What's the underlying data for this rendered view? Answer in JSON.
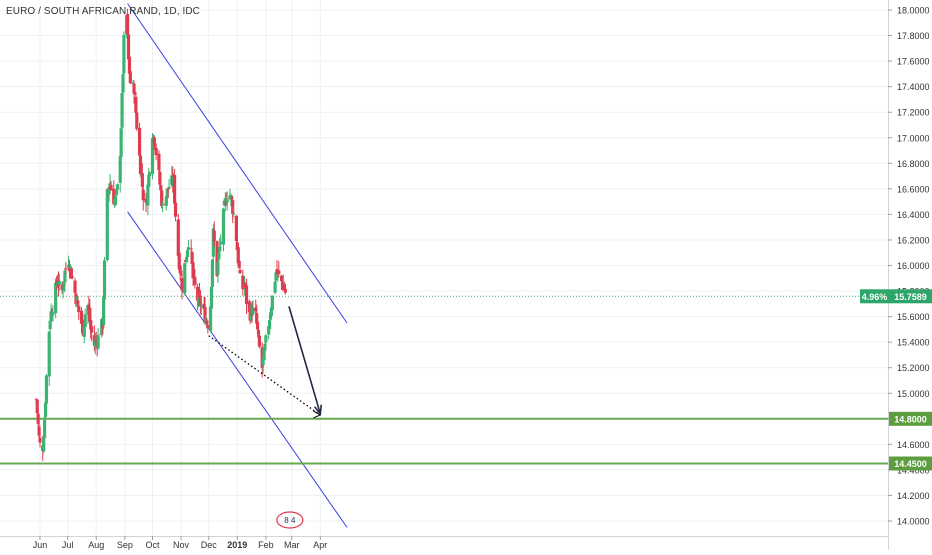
{
  "chart_data": {
    "type": "candlestick",
    "title": "EURO / SOUTH AFRICAN RAND, 1D, IDC",
    "x_ticks": [
      "Jun",
      "Jul",
      "Aug",
      "Sep",
      "Oct",
      "Nov",
      "Dec",
      "2019",
      "Feb",
      "Mar",
      "Apr"
    ],
    "y_ticks": [
      "18.0000",
      "17.8000",
      "17.6000",
      "17.4000",
      "17.2000",
      "17.0000",
      "16.8000",
      "16.6000",
      "16.4000",
      "16.2000",
      "16.0000",
      "15.8000",
      "15.6000",
      "15.4000",
      "15.2000",
      "15.0000",
      "14.8000",
      "14.6000",
      "14.4000",
      "14.2000",
      "14.0000"
    ],
    "ylim": [
      13.95,
      18.05
    ],
    "grid": true,
    "series": [
      {
        "kind": "close_anchors",
        "points": [
          [
            "May 28",
            14.95
          ],
          [
            "May 31",
            14.65
          ],
          [
            "Jun 3",
            14.48
          ],
          [
            "Jun 6",
            14.8
          ],
          [
            "Jun 9",
            15.3
          ],
          [
            "Jun 12",
            15.6
          ],
          [
            "Jun 16",
            15.72
          ],
          [
            "Jun 20",
            15.9
          ],
          [
            "Jun 24",
            15.75
          ],
          [
            "Jun 28",
            15.95
          ],
          [
            "Jul 2",
            16.05
          ],
          [
            "Jul 6",
            15.9
          ],
          [
            "Jul 10",
            15.75
          ],
          [
            "Jul 14",
            15.6
          ],
          [
            "Jul 18",
            15.5
          ],
          [
            "Jul 22",
            15.75
          ],
          [
            "Jul 26",
            15.5
          ],
          [
            "Jul 30",
            15.38
          ],
          [
            "Aug 4",
            15.45
          ],
          [
            "Aug 8",
            15.55
          ],
          [
            "Aug 10",
            16.0
          ],
          [
            "Aug 13",
            16.55
          ],
          [
            "Aug 16",
            16.65
          ],
          [
            "Aug 18",
            16.55
          ],
          [
            "Aug 22",
            16.5
          ],
          [
            "Aug 26",
            16.7
          ],
          [
            "Aug 29",
            17.3
          ],
          [
            "Aug 31",
            17.75
          ],
          [
            "Sep 3",
            17.95
          ],
          [
            "Sep 5",
            17.6
          ],
          [
            "Sep 8",
            17.35
          ],
          [
            "Sep 11",
            17.4
          ],
          [
            "Sep 14",
            17.1
          ],
          [
            "Sep 17",
            16.85
          ],
          [
            "Sep 21",
            16.55
          ],
          [
            "Sep 24",
            16.45
          ],
          [
            "Sep 27",
            16.7
          ],
          [
            "Oct 1",
            17.05
          ],
          [
            "Oct 4",
            16.95
          ],
          [
            "Oct 8",
            16.7
          ],
          [
            "Oct 12",
            16.45
          ],
          [
            "Oct 16",
            16.55
          ],
          [
            "Oct 20",
            16.65
          ],
          [
            "Oct 24",
            16.65
          ],
          [
            "Oct 28",
            16.15
          ],
          [
            "Nov 2",
            15.85
          ],
          [
            "Nov 6",
            16.05
          ],
          [
            "Nov 10",
            16.25
          ],
          [
            "Nov 14",
            15.9
          ],
          [
            "Nov 18",
            15.75
          ],
          [
            "Nov 22",
            15.7
          ],
          [
            "Nov 26",
            15.62
          ],
          [
            "Nov 30",
            15.55
          ],
          [
            "Dec 3",
            15.7
          ],
          [
            "Dec 6",
            16.25
          ],
          [
            "Dec 10",
            15.95
          ],
          [
            "Dec 14",
            16.2
          ],
          [
            "Dec 18",
            16.45
          ],
          [
            "Dec 22",
            16.6
          ],
          [
            "Dec 26",
            16.5
          ],
          [
            "Dec 30",
            16.3
          ],
          [
            "Jan 2",
            16.05
          ],
          [
            "Jan 5",
            15.8
          ],
          [
            "Jan 9",
            15.85
          ],
          [
            "Jan 13",
            15.6
          ],
          [
            "Jan 17",
            15.65
          ],
          [
            "Jan 21",
            15.6
          ],
          [
            "Jan 25",
            15.35
          ],
          [
            "Jan 28",
            15.2
          ],
          [
            "Jan 31",
            15.35
          ],
          [
            "Feb 4",
            15.55
          ],
          [
            "Feb 8",
            15.75
          ],
          [
            "Feb 12",
            15.95
          ],
          [
            "Feb 16",
            15.9
          ],
          [
            "Feb 20",
            15.85
          ],
          [
            "Feb 24",
            15.73
          ]
        ]
      }
    ],
    "annotations": {
      "current_change": "4.96%",
      "current_price": "15.7589",
      "current_value": 15.7589,
      "support_levels": [
        "14.8000",
        "14.4500"
      ],
      "support_values": [
        14.8,
        14.45
      ],
      "channel_upper": [
        [
          "Sep 4",
          18.05
        ],
        [
          "Apr 30",
          15.55
        ]
      ],
      "channel_lower": [
        [
          "Sep 4",
          16.42
        ],
        [
          "Apr 30",
          13.95
        ]
      ],
      "trendline_dotted": [
        [
          "Dec 1",
          15.45
        ],
        [
          "Apr 1",
          14.83
        ]
      ],
      "projection_arrow": [
        [
          "Feb 26",
          15.68
        ],
        [
          "Apr 1",
          14.84
        ]
      ]
    }
  },
  "colors": {
    "up": "#26a69a",
    "down": "#ef5350",
    "up_fill": "#3cb371",
    "down_fill": "#e03a4e",
    "channel": "#3a3ee0",
    "support": "#6aa84f",
    "support_label_bg": "#5c9e3f",
    "current_line": "#3cb371",
    "grid": "#eef0f3",
    "axis_text": "#333333",
    "projection": "#1f2a44"
  },
  "watermark_text": "8 4"
}
